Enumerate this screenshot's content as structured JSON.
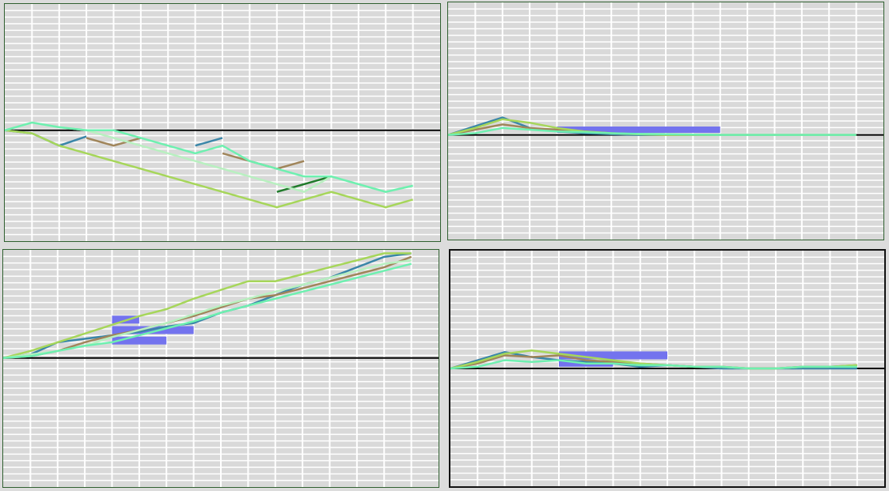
{
  "colors": {
    "background": "#d9d9d9",
    "grid": "#ffffff",
    "baseline": "#000000",
    "bars": "#7373ee"
  },
  "chart_data": [
    {
      "type": "line",
      "grid": true,
      "x": [
        0,
        1,
        2,
        3,
        4,
        5,
        6,
        7,
        8,
        9,
        10,
        11,
        12,
        13,
        14,
        15
      ],
      "ylim": [
        -3.6,
        4.1
      ],
      "baseline": 0,
      "bars": [],
      "series": [
        {
          "color": "#3a86a8",
          "values": [
            0,
            -0.1,
            -0.5,
            -0.2,
            null,
            null,
            null,
            -0.5,
            -0.25,
            null,
            null,
            null,
            null,
            null,
            null,
            null
          ]
        },
        {
          "color": "#a0855a",
          "values": [
            null,
            null,
            null,
            -0.25,
            -0.5,
            -0.25,
            null,
            null,
            -0.75,
            -1.0,
            -1.25,
            -1.0,
            null,
            null,
            null,
            -2.25
          ]
        },
        {
          "color": "#a6d65a",
          "values": [
            0,
            -0.1,
            -0.5,
            -0.75,
            -1.0,
            -1.25,
            -1.5,
            -1.75,
            -2.0,
            -2.25,
            -2.5,
            -2.25,
            -2.0,
            -2.25,
            -2.5,
            -2.25
          ]
        },
        {
          "color": "#1f7a2a",
          "values": [
            null,
            null,
            null,
            null,
            null,
            null,
            null,
            null,
            null,
            null,
            -2.0,
            -1.75,
            -1.5,
            null,
            null,
            null
          ]
        },
        {
          "color": "#b8f0c0",
          "values": [
            0,
            0.25,
            0.1,
            0.0,
            -0.25,
            -0.5,
            -0.75,
            -1.0,
            -1.25,
            -1.5,
            -1.75,
            -2.0,
            -1.5,
            -1.75,
            -2.0,
            -1.8
          ]
        },
        {
          "color": "#6ef0b0",
          "values": [
            0,
            0.25,
            0.1,
            0.0,
            0.0,
            -0.25,
            -0.5,
            -0.75,
            -0.5,
            -1.0,
            -1.25,
            -1.5,
            -1.5,
            -1.75,
            -2.0,
            -1.8
          ]
        }
      ]
    },
    {
      "type": "line",
      "grid": true,
      "x": [
        0,
        1,
        2,
        3,
        4,
        5,
        6,
        7,
        8,
        9,
        10,
        11,
        12,
        13,
        14,
        15
      ],
      "ylim": [
        -3.0,
        3.8
      ],
      "baseline": 0,
      "bars": [
        {
          "x0": 4,
          "x1": 10,
          "value": 0.15
        }
      ],
      "series": [
        {
          "color": "#3a86a8",
          "values": [
            0,
            0.25,
            0.5,
            0.2,
            0.1,
            0.05,
            0.02,
            0.0,
            0.0,
            0.0,
            0.0,
            0.0,
            0.0,
            0.0,
            0.0,
            0.0
          ]
        },
        {
          "color": "#a0855a",
          "values": [
            0,
            0.15,
            0.3,
            0.2,
            0.15,
            0.1,
            0.05,
            0.02,
            0.0,
            0.0,
            0.0,
            0.0,
            0.0,
            0.0,
            0.0,
            0.0
          ]
        },
        {
          "color": "#a6d65a",
          "values": [
            0,
            0.2,
            0.45,
            0.35,
            0.2,
            0.1,
            0.05,
            0.02,
            0.0,
            0.0,
            0.0,
            0.0,
            0.0,
            0.0,
            0.0,
            0.0
          ]
        },
        {
          "color": "#6ef0b0",
          "values": [
            0,
            0.05,
            0.2,
            0.15,
            0.1,
            0.08,
            0.05,
            0.03,
            0.02,
            0.01,
            0.0,
            0.0,
            0.0,
            0.0,
            0.0,
            0.0
          ]
        }
      ]
    },
    {
      "type": "line",
      "grid": true,
      "x": [
        0,
        1,
        2,
        3,
        4,
        5,
        6,
        7,
        8,
        9,
        10,
        11,
        12,
        13,
        14,
        15
      ],
      "ylim": [
        -3.7,
        3.1
      ],
      "baseline": 0,
      "bars": [
        {
          "x0": 4,
          "x1": 5,
          "value": 1.1
        },
        {
          "x0": 4,
          "x1": 7,
          "value": 0.8
        },
        {
          "x0": 4,
          "x1": 6,
          "value": 0.5
        }
      ],
      "series": [
        {
          "color": "#3a86a8",
          "values": [
            0,
            0.1,
            0.45,
            0.55,
            0.65,
            0.75,
            0.9,
            1.0,
            1.3,
            1.5,
            1.8,
            2.1,
            2.3,
            2.6,
            2.9,
            3.0
          ]
        },
        {
          "color": "#a0855a",
          "values": [
            0,
            0.05,
            0.2,
            0.45,
            0.65,
            0.8,
            1.0,
            1.2,
            1.45,
            1.7,
            1.8,
            2.0,
            2.2,
            2.4,
            2.6,
            2.9
          ]
        },
        {
          "color": "#a6d65a",
          "values": [
            0,
            0.2,
            0.45,
            0.7,
            0.95,
            1.2,
            1.4,
            1.7,
            1.95,
            2.2,
            2.2,
            2.4,
            2.6,
            2.8,
            3.0,
            3.0
          ]
        },
        {
          "color": "#b8f0c0",
          "values": [
            0,
            0.1,
            0.2,
            0.35,
            0.6,
            0.8,
            1.0,
            1.25,
            1.5,
            1.7,
            1.9,
            2.1,
            2.3,
            2.5,
            2.7,
            2.8
          ]
        },
        {
          "color": "#6ef0b0",
          "values": [
            0,
            0.05,
            0.2,
            0.35,
            0.45,
            0.65,
            0.85,
            1.05,
            1.3,
            1.5,
            1.7,
            1.9,
            2.1,
            2.3,
            2.5,
            2.7
          ]
        }
      ]
    },
    {
      "type": "line",
      "grid": true,
      "x": [
        0,
        1,
        2,
        3,
        4,
        5,
        6,
        7,
        8,
        9,
        10,
        11,
        12,
        13,
        14,
        15
      ],
      "ylim": [
        -3.6,
        3.6
      ],
      "baseline": 0,
      "bars": [
        {
          "x0": 4,
          "x1": 8,
          "value": 0.4
        },
        {
          "x0": 4,
          "x1": 6,
          "value": 0.15
        }
      ],
      "series": [
        {
          "color": "#3a86a8",
          "values": [
            0,
            0.25,
            0.5,
            0.35,
            0.25,
            0.2,
            0.15,
            0.05,
            0.1,
            0.05,
            0.0,
            0.0,
            0.0,
            0.0,
            0.0,
            0.0
          ]
        },
        {
          "color": "#a0855a",
          "values": [
            0,
            0.15,
            0.4,
            0.35,
            0.4,
            0.25,
            0.2,
            0.15,
            0.1,
            0.05,
            0.05,
            0.0,
            0.0,
            0.05,
            0.05,
            0.1
          ]
        },
        {
          "color": "#a6d65a",
          "values": [
            0,
            0.2,
            0.45,
            0.55,
            0.45,
            0.35,
            0.25,
            0.15,
            0.1,
            0.05,
            0.05,
            0.0,
            0.0,
            0.05,
            0.05,
            0.1
          ]
        },
        {
          "color": "#6ef0b0",
          "values": [
            0,
            0.05,
            0.25,
            0.2,
            0.25,
            0.15,
            0.15,
            0.1,
            0.1,
            0.05,
            0.05,
            0.0,
            0.0,
            0.05,
            0.05,
            0.05
          ]
        }
      ]
    }
  ]
}
